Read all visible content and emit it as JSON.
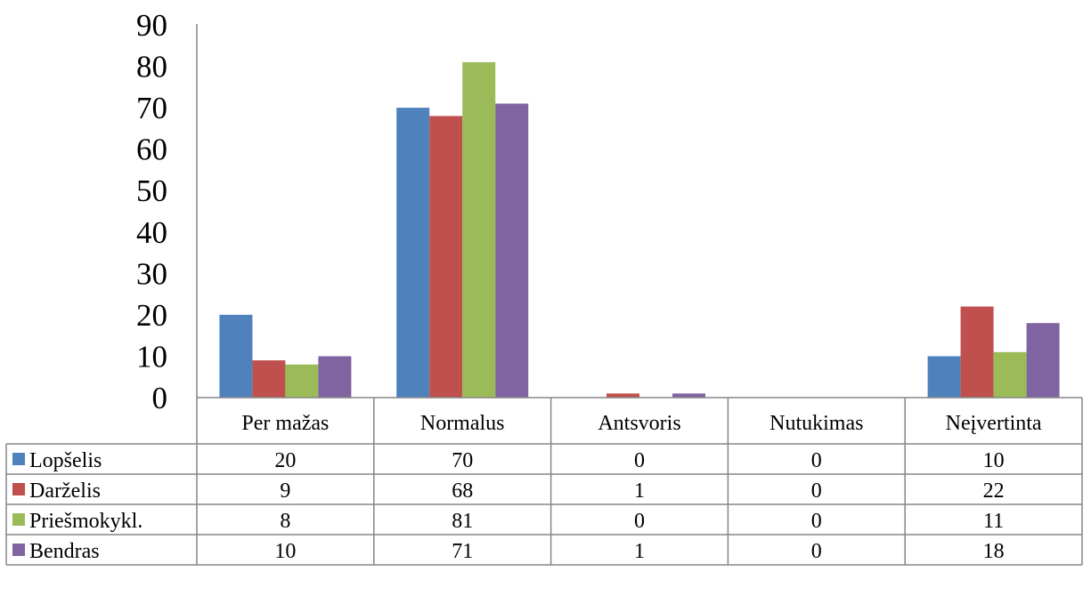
{
  "chart_data": {
    "type": "bar",
    "categories": [
      "Per mažas",
      "Normalus",
      "Antsvoris",
      "Nutukimas",
      "Neįvertinta"
    ],
    "series": [
      {
        "name": "Lopšelis",
        "color": "#4F81BD",
        "values": [
          20,
          70,
          0,
          0,
          10
        ]
      },
      {
        "name": "Darželis",
        "color": "#C0504D",
        "values": [
          9,
          68,
          1,
          0,
          22
        ]
      },
      {
        "name": "Priešmokykl.",
        "color": "#9BBB59",
        "values": [
          8,
          81,
          0,
          0,
          11
        ]
      },
      {
        "name": "Bendras",
        "color": "#8064A2",
        "values": [
          10,
          71,
          1,
          0,
          18
        ]
      }
    ],
    "ylim": [
      0,
      90
    ],
    "yticks": [
      0,
      10,
      20,
      30,
      40,
      50,
      60,
      70,
      80,
      90
    ],
    "grid": false,
    "legend": "data-table-rows",
    "show_data_table": true
  }
}
